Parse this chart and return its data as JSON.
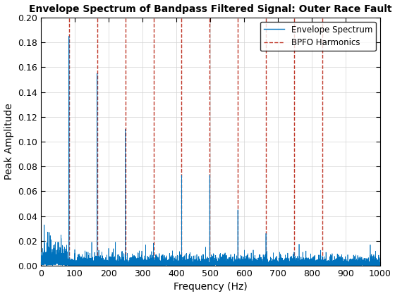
{
  "title": "Envelope Spectrum of Bandpass Filtered Signal: Outer Race Fault",
  "xlabel": "Frequency (Hz)",
  "ylabel": "Peak Amplitude",
  "xlim": [
    0,
    1000
  ],
  "ylim": [
    0,
    0.2
  ],
  "yticks": [
    0,
    0.02,
    0.04,
    0.06,
    0.08,
    0.1,
    0.12,
    0.14,
    0.16,
    0.18,
    0.2
  ],
  "xticks": [
    0,
    100,
    200,
    300,
    400,
    500,
    600,
    700,
    800,
    900,
    1000
  ],
  "bpfo": 83.0,
  "n_harmonics": 10,
  "signal_color": "#0072BD",
  "harmonic_color": "#C0392B",
  "legend_labels": [
    "Envelope Spectrum",
    "BPFO Harmonics"
  ],
  "background_color": "#FFFFFF",
  "peaks": [
    {
      "freq": 83.0,
      "amp": 0.185
    },
    {
      "freq": 166.0,
      "amp": 0.155
    },
    {
      "freq": 249.0,
      "amp": 0.11
    },
    {
      "freq": 332.0,
      "amp": 0.018
    },
    {
      "freq": 415.0,
      "amp": 0.073
    },
    {
      "freq": 498.0,
      "amp": 0.073
    },
    {
      "freq": 581.0,
      "amp": 0.045
    },
    {
      "freq": 664.0,
      "amp": 0.026
    },
    {
      "freq": 747.0,
      "amp": 0.011
    },
    {
      "freq": 830.0,
      "amp": 0.008
    }
  ],
  "noise_seed": 7,
  "fs": 10000,
  "n_points": 100000
}
